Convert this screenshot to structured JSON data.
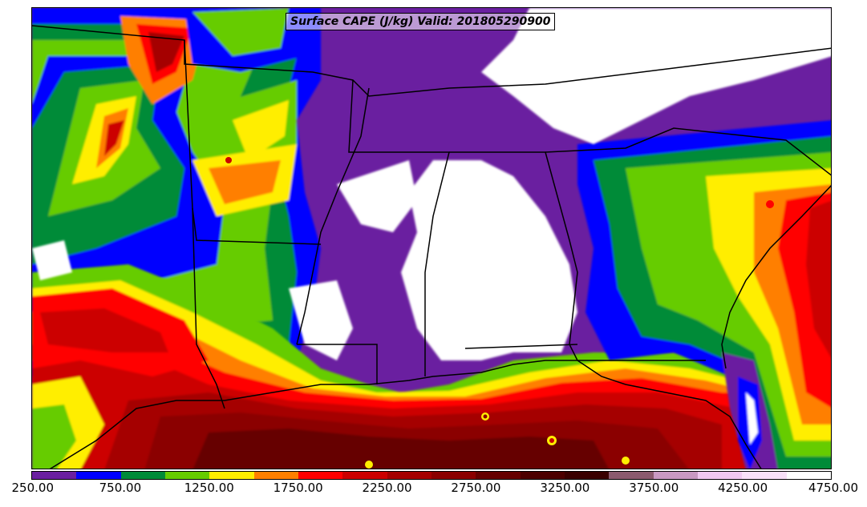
{
  "map": {
    "title": "Surface CAPE (J/kg) Valid: 201805290900",
    "variable": "Surface CAPE",
    "units": "J/kg",
    "valid_time": "201805290900",
    "region": "Southeastern United States / Gulf of Mexico"
  },
  "legend": {
    "tick_labels": [
      "250.00",
      "750.00",
      "1250.00",
      "1750.00",
      "2250.00",
      "2750.00",
      "3250.00",
      "3750.00",
      "4250.00",
      "4750.00"
    ],
    "levels": [
      250,
      500,
      750,
      1000,
      1250,
      1500,
      1750,
      2000,
      2250,
      2500,
      2750,
      3000,
      3250,
      3500,
      3750,
      4000,
      4250,
      4500,
      4750
    ],
    "colors": [
      "#6a1fa0",
      "#0000ff",
      "#008b38",
      "#66cc00",
      "#ffee00",
      "#ff7f00",
      "#ff0000",
      "#cc0000",
      "#a50000",
      "#8b0000",
      "#660000",
      "#4d0000",
      "#3a0000",
      "#8b5a6e",
      "#c999c2",
      "#f0c8f0",
      "#f8e0f8",
      "#ffffff"
    ]
  }
}
